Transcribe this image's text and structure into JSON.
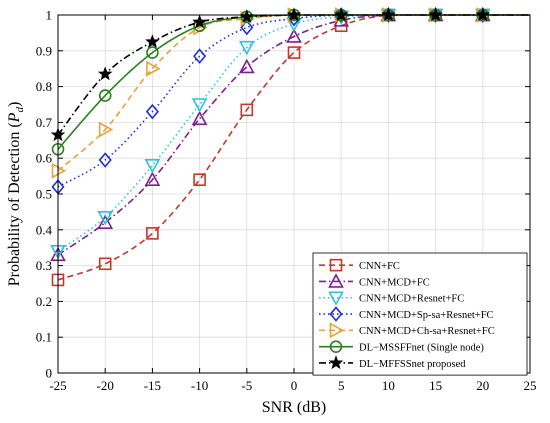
{
  "chart_data": {
    "type": "line",
    "xlabel": "SNR (dB)",
    "ylabel": "Probability of Detection (",
    "ylabel_symbol": "P",
    "ylabel_subscript": "d",
    "ylabel_close": ")",
    "x_ticks": [
      -25,
      -20,
      -15,
      -10,
      -5,
      0,
      5,
      10,
      15,
      20,
      25
    ],
    "y_ticks": [
      0,
      0.1,
      0.2,
      0.3,
      0.4,
      0.5,
      0.6,
      0.7,
      0.8,
      0.9,
      1
    ],
    "x_tick_labels": [
      "-25",
      "-20",
      "-15",
      "-10",
      "-5",
      "0",
      "5",
      "10",
      "15",
      "20",
      "25"
    ],
    "y_tick_labels": [
      "0",
      "0.1",
      "0.2",
      "0.3",
      "0.4",
      "0.5",
      "0.6",
      "0.7",
      "0.8",
      "0.9",
      "1"
    ],
    "xlim": [
      -25,
      25
    ],
    "ylim": [
      0,
      1
    ],
    "grid": true,
    "legend_position": "bottom-right",
    "series": [
      {
        "name": "CNN+FC",
        "color": "#c0392b",
        "dash": "dashed",
        "marker": "square",
        "x": [
          -25,
          -20,
          -15,
          -10,
          -5,
          0,
          5,
          10,
          15,
          20
        ],
        "values": [
          0.26,
          0.305,
          0.39,
          0.54,
          0.735,
          0.895,
          0.97,
          1.0,
          1.0,
          1.0
        ]
      },
      {
        "name": "CNN+MCD+FC",
        "color": "#7d1f8c",
        "dash": "dashdot",
        "marker": "triangle-up",
        "x": [
          -25,
          -20,
          -15,
          -10,
          -5,
          0,
          5,
          10,
          15,
          20
        ],
        "values": [
          0.33,
          0.42,
          0.54,
          0.71,
          0.855,
          0.94,
          0.985,
          1.0,
          1.0,
          1.0
        ]
      },
      {
        "name": "CNN+MCD+Resnet+FC",
        "color": "#2bc4d8",
        "dash": "dotted",
        "marker": "triangle-down",
        "x": [
          -25,
          -20,
          -15,
          -10,
          -5,
          0,
          5,
          10,
          15,
          20
        ],
        "values": [
          0.34,
          0.435,
          0.58,
          0.75,
          0.91,
          0.975,
          0.995,
          1.0,
          1.0,
          1.0
        ]
      },
      {
        "name": "CNN+MCD+Sp-sa+Resnet+FC",
        "color": "#1f2fd0",
        "dash": "dotted",
        "marker": "diamond",
        "x": [
          -25,
          -20,
          -15,
          -10,
          -5,
          0,
          5,
          10,
          15,
          20
        ],
        "values": [
          0.52,
          0.595,
          0.73,
          0.885,
          0.965,
          0.99,
          1.0,
          1.0,
          1.0,
          1.0
        ]
      },
      {
        "name": "CNN+MCD+Ch-sa+Resnet+FC",
        "color": "#e8a23a",
        "dash": "dashed",
        "marker": "triangle-right",
        "x": [
          -25,
          -20,
          -15,
          -10,
          -5,
          0,
          5,
          10,
          15,
          20
        ],
        "values": [
          0.565,
          0.68,
          0.85,
          0.965,
          0.99,
          1.0,
          1.0,
          1.0,
          1.0,
          1.0
        ]
      },
      {
        "name": "DL−MSSFFnet (Single node)",
        "color": "#2a7f1f",
        "dash": "solid",
        "marker": "circle",
        "x": [
          -25,
          -20,
          -15,
          -10,
          -5,
          0,
          5,
          10,
          15,
          20
        ],
        "values": [
          0.625,
          0.775,
          0.895,
          0.97,
          0.995,
          1.0,
          1.0,
          1.0,
          1.0,
          1.0
        ]
      },
      {
        "name": "DL−MFFSSnet proposed",
        "color": "#000000",
        "dash": "dashdot",
        "marker": "star",
        "x": [
          -25,
          -20,
          -15,
          -10,
          -5,
          0,
          5,
          10,
          15,
          20
        ],
        "values": [
          0.665,
          0.835,
          0.925,
          0.98,
          0.995,
          1.0,
          1.0,
          1.0,
          1.0,
          1.0
        ]
      }
    ]
  }
}
